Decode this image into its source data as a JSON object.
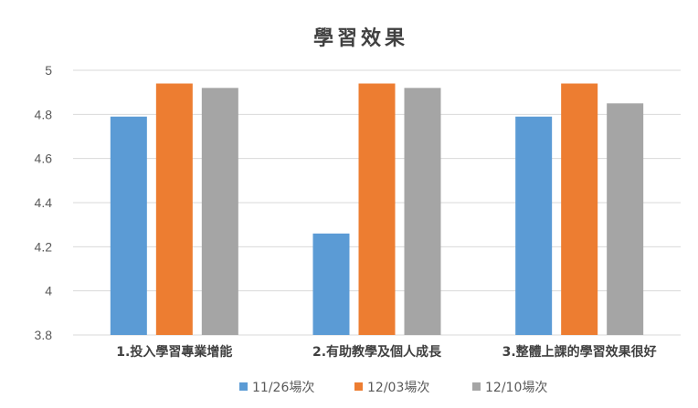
{
  "chart_data": {
    "type": "bar",
    "title": "學習效果",
    "xlabel": "",
    "ylabel": "",
    "ylim": [
      3.8,
      5
    ],
    "yticks": [
      3.8,
      4,
      4.2,
      4.4,
      4.6,
      4.8,
      5
    ],
    "ytick_labels": [
      "3.8",
      "4",
      "4.2",
      "4.4",
      "4.6",
      "4.8",
      "5"
    ],
    "grid": true,
    "legend_position": "bottom",
    "categories": [
      "1.投入學習專業增能",
      "2.有助教學及個人成長",
      "3.整體上課的學習效果很好"
    ],
    "series": [
      {
        "name": "11/26場次",
        "color": "#5b9bd5",
        "values": [
          4.79,
          4.26,
          4.79
        ]
      },
      {
        "name": "12/03場次",
        "color": "#ed7d31",
        "values": [
          4.94,
          4.94,
          4.94
        ]
      },
      {
        "name": "12/10場次",
        "color": "#a5a5a5",
        "values": [
          4.92,
          4.92,
          4.85
        ]
      }
    ]
  }
}
